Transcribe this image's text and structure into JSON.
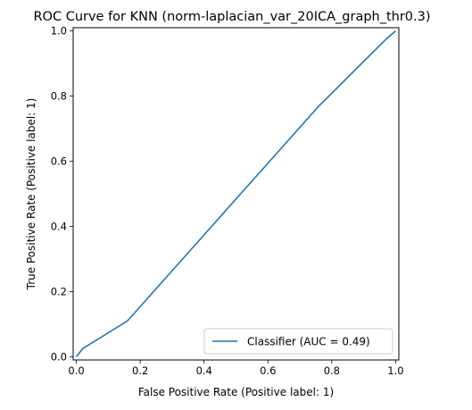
{
  "chart_data": {
    "type": "line",
    "title": "ROC Curve for KNN (norm-laplacian_var_20ICA_graph_thr0.3)",
    "xlabel": "False Positive Rate (Positive label: 1)",
    "ylabel": "True Positive Rate (Positive label: 1)",
    "xlim": [
      -0.01,
      1.01
    ],
    "ylim": [
      -0.01,
      1.01
    ],
    "x_ticks": [
      0.0,
      0.2,
      0.4,
      0.6,
      0.8,
      1.0
    ],
    "y_ticks": [
      0.0,
      0.2,
      0.4,
      0.6,
      0.8,
      1.0
    ],
    "x_tick_labels": [
      "0.0",
      "0.2",
      "0.4",
      "0.6",
      "0.8",
      "1.0"
    ],
    "y_tick_labels": [
      "0.0",
      "0.2",
      "0.4",
      "0.6",
      "0.8",
      "1.0"
    ],
    "grid": false,
    "legend_position": "lower-right",
    "series": [
      {
        "name": "Classifier (AUC = 0.49)",
        "color": "#1f77b4",
        "x": [
          0.0,
          0.02,
          0.16,
          0.76,
          0.97,
          1.0
        ],
        "y": [
          0.0,
          0.025,
          0.11,
          0.77,
          0.975,
          1.0
        ]
      }
    ]
  }
}
